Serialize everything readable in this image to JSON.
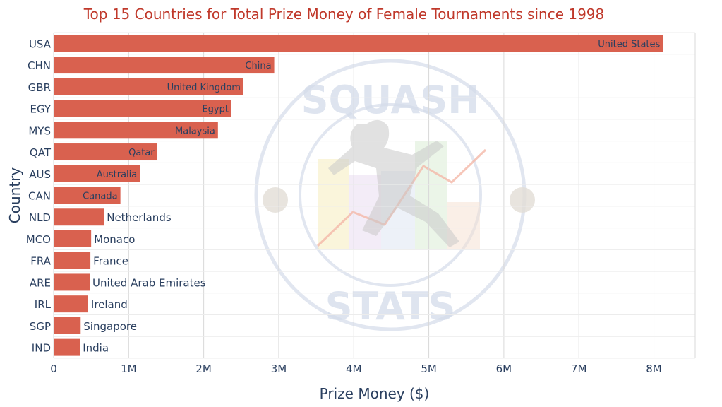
{
  "colors": {
    "bar": "#d9614f",
    "title": "#c0392b",
    "axis_text": "#2a3f5f",
    "grid": "#d8d8d8",
    "watermark": "#d4dcea"
  },
  "watermark": {
    "top_text": "SQUASH",
    "bottom_text": "STATS"
  },
  "chart_data": {
    "type": "bar",
    "orientation": "horizontal",
    "title": "Top 15 Countries for Total Prize Money of Female Tournaments since 1998",
    "xlabel": "Prize Money ($)",
    "ylabel": "Country",
    "xlim": [
      0,
      8.55
    ],
    "x_ticks": [
      0,
      1,
      2,
      3,
      4,
      5,
      6,
      7,
      8
    ],
    "x_tick_labels": [
      "0",
      "1M",
      "2M",
      "3M",
      "4M",
      "5M",
      "6M",
      "7M",
      "8M"
    ],
    "grid": true,
    "units": "millions of dollars",
    "categories": [
      "USA",
      "CHN",
      "GBR",
      "EGY",
      "MYS",
      "QAT",
      "AUS",
      "CAN",
      "NLD",
      "MCO",
      "FRA",
      "ARE",
      "IRL",
      "SGP",
      "IND"
    ],
    "values": [
      8.12,
      2.94,
      2.53,
      2.37,
      2.19,
      1.38,
      1.15,
      0.89,
      0.67,
      0.5,
      0.49,
      0.48,
      0.46,
      0.36,
      0.35
    ],
    "bar_labels": [
      "United States",
      "China",
      "United Kingdom",
      "Egypt",
      "Malaysia",
      "Qatar",
      "Australia",
      "Canada",
      "Netherlands",
      "Monaco",
      "France",
      "United Arab Emirates",
      "Ireland",
      "Singapore",
      "India"
    ]
  }
}
